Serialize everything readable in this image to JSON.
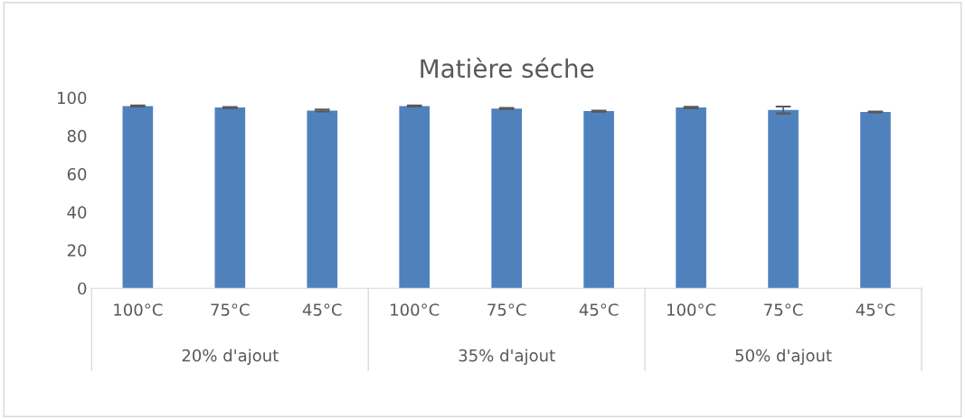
{
  "chart_data": {
    "type": "bar",
    "title": "Matière séche",
    "categories": [
      "100°C",
      "75°C",
      "45°C",
      "100°C",
      "75°C",
      "45°C",
      "100°C",
      "75°C",
      "45°C"
    ],
    "values": [
      95.6,
      94.8,
      93.2,
      95.6,
      94.3,
      92.9,
      94.8,
      93.5,
      92.5
    ],
    "errors": [
      0.3,
      0.3,
      0.5,
      0.3,
      0.3,
      0.3,
      0.4,
      1.8,
      0.2
    ],
    "color": "#4f81bd",
    "annotations": [
      "20% d'ajout",
      "35% d'ajout",
      "50% d'ajout"
    ],
    "ylim": [
      0,
      100
    ],
    "yticks": [
      0,
      20,
      40,
      60,
      80,
      100
    ],
    "grid": false
  }
}
